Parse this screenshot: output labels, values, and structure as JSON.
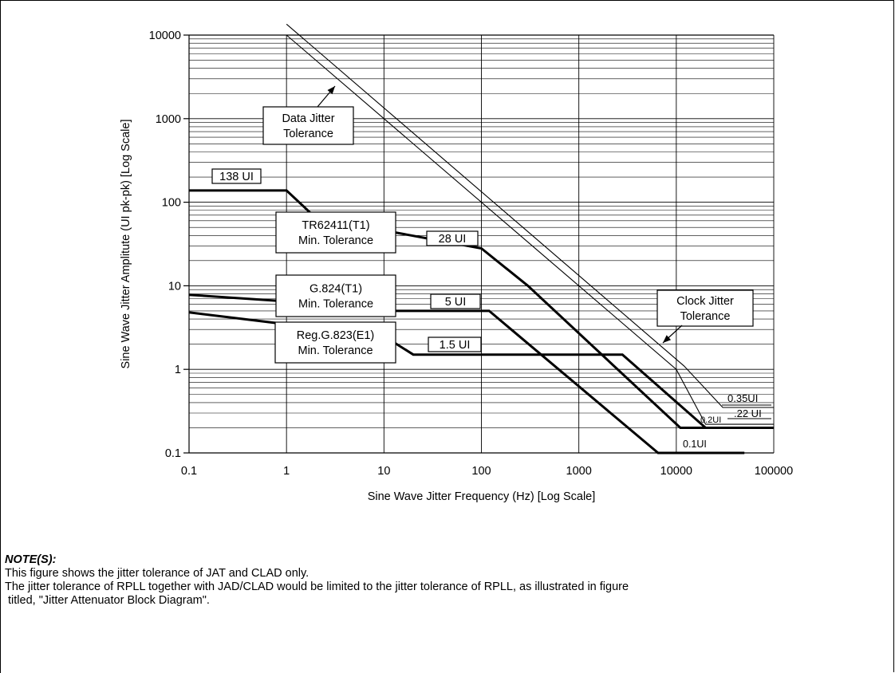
{
  "chart_data": {
    "type": "line",
    "title": "",
    "xlabel": "Sine Wave Jitter Frequency (Hz) [Log Scale]",
    "ylabel": "Sine Wave Jitter Amplitute (UI pk-pk) [Log Scale]",
    "x_scale": "log",
    "y_scale": "log",
    "xlim": [
      0.1,
      100000
    ],
    "ylim": [
      0.1,
      10000
    ],
    "x_ticks": [
      "0.1",
      "1",
      "10",
      "100",
      "1000",
      "10000",
      "100000"
    ],
    "y_ticks": [
      "0.1",
      "1",
      "10",
      "100",
      "1000",
      "10000"
    ],
    "grid": true,
    "series": [
      {
        "style": "thick",
        "points": [
          [
            0.1,
            138
          ],
          [
            1,
            138
          ],
          [
            2,
            65
          ],
          [
            100,
            28
          ],
          [
            300,
            10
          ],
          [
            11000,
            0.2
          ],
          [
            100000,
            0.2
          ]
        ]
      },
      {
        "style": "thick",
        "points": [
          [
            0.1,
            7.8
          ],
          [
            1,
            6.5
          ],
          [
            2,
            5
          ],
          [
            120,
            5
          ],
          [
            6500,
            0.1
          ],
          [
            50000,
            0.1
          ]
        ]
      },
      {
        "style": "thick",
        "points": [
          [
            0.1,
            4.8
          ],
          [
            10,
            2.5
          ],
          [
            20,
            1.5
          ],
          [
            2800,
            1.5
          ],
          [
            20000,
            0.2
          ]
        ]
      },
      {
        "style": "thin",
        "points": [
          [
            1,
            13500
          ],
          [
            12000,
            1.1
          ],
          [
            30000,
            0.35
          ],
          [
            100000,
            0.35
          ]
        ]
      },
      {
        "style": "thin",
        "points": [
          [
            1,
            10000
          ],
          [
            10000,
            1.0
          ],
          [
            20000,
            0.22
          ],
          [
            100000,
            0.22
          ]
        ]
      }
    ],
    "annotations": {
      "data_jitter": [
        "Data Jitter",
        "Tolerance"
      ],
      "tr62411": [
        "TR62411(T1)",
        "Min. Tolerance"
      ],
      "g824": [
        "G.824(T1)",
        "Min. Tolerance"
      ],
      "g823": [
        "Reg.G.823(E1)",
        "Min. Tolerance"
      ],
      "clock_jitter": [
        "Clock Jitter",
        "Tolerance"
      ],
      "label_138": "138 UI",
      "label_28": "28 UI",
      "label_5": "5 UI",
      "label_1_5": "1.5 UI",
      "label_035": "0.35UI",
      "label_022": ".22 UI",
      "label_02": "0.2UI",
      "label_01": "0.1UI"
    }
  },
  "notes": {
    "title": "NOTE(S):",
    "line1": "This figure shows the jitter tolerance of JAT and CLAD only.",
    "line2": "The jitter tolerance of RPLL together with JAD/CLAD would be limited to the jitter tolerance of RPLL, as illustrated in figure",
    "line3": " titled, \"Jitter Attenuator Block Diagram\"."
  }
}
